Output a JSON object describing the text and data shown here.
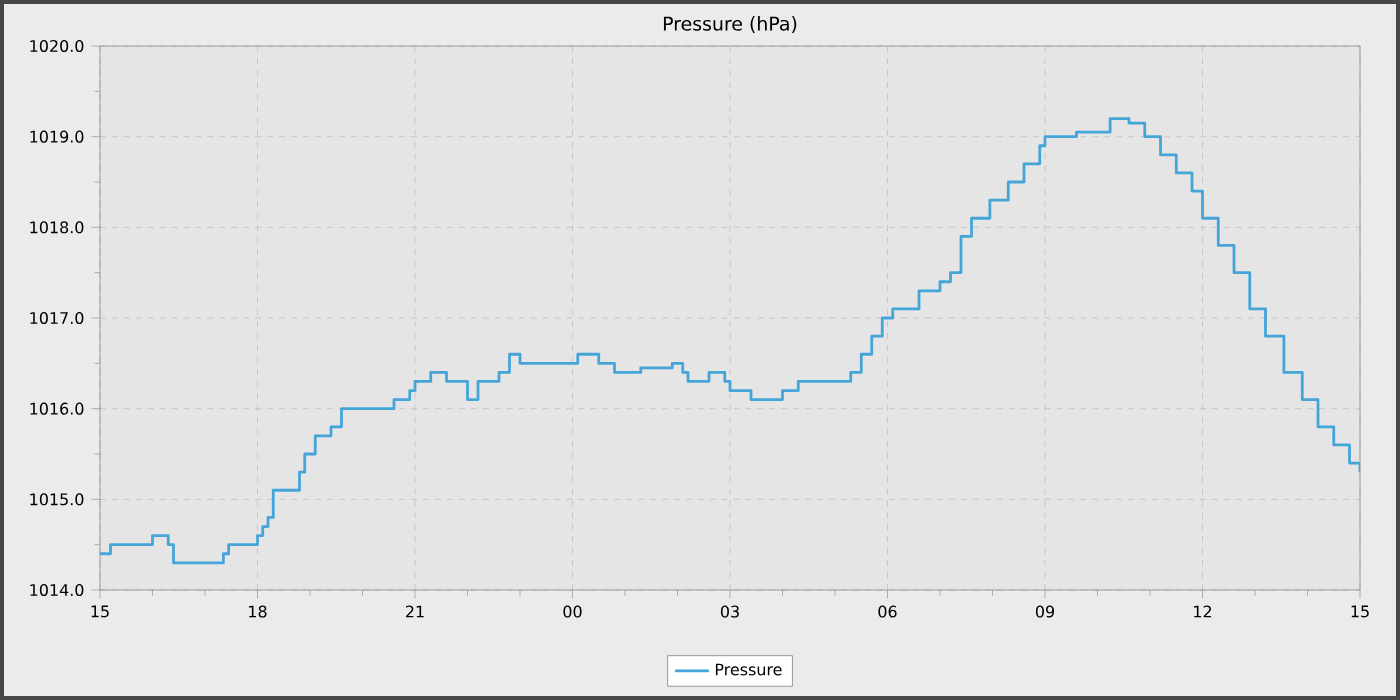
{
  "chart_data": {
    "type": "step",
    "title": "Pressure (hPa)",
    "series": [
      {
        "name": "Pressure",
        "color": "#45a5d8",
        "x": [
          15.0,
          15.2,
          15.8,
          16.0,
          16.3,
          16.4,
          17.35,
          17.45,
          18.0,
          18.1,
          18.2,
          18.3,
          18.43,
          18.8,
          18.9,
          19.1,
          19.4,
          19.6,
          19.8,
          20.6,
          20.9,
          21.0,
          21.3,
          21.6,
          22.0,
          22.2,
          22.6,
          22.8,
          23.0,
          24.1,
          24.5,
          24.8,
          25.3,
          25.9,
          26.1,
          26.2,
          26.6,
          26.9,
          27.0,
          27.4,
          28.0,
          28.3,
          29.3,
          29.5,
          29.7,
          29.9,
          30.1,
          30.6,
          31.0,
          31.2,
          31.4,
          31.6,
          31.95,
          32.3,
          32.6,
          32.9,
          33.0,
          33.6,
          34.24,
          34.6,
          34.9,
          35.2,
          35.5,
          35.8,
          36.0,
          36.3,
          36.6,
          36.9,
          37.2,
          37.55,
          37.9,
          38.2,
          38.5,
          38.8,
          39.0
        ],
        "values": [
          1014.4,
          1014.5,
          1014.5,
          1014.6,
          1014.5,
          1014.3,
          1014.4,
          1014.5,
          1014.6,
          1014.7,
          1014.8,
          1015.1,
          1015.1,
          1015.3,
          1015.5,
          1015.7,
          1015.8,
          1016.0,
          1016.0,
          1016.1,
          1016.2,
          1016.3,
          1016.4,
          1016.3,
          1016.1,
          1016.3,
          1016.4,
          1016.6,
          1016.5,
          1016.6,
          1016.5,
          1016.4,
          1016.45,
          1016.5,
          1016.4,
          1016.3,
          1016.4,
          1016.3,
          1016.2,
          1016.1,
          1016.2,
          1016.3,
          1016.4,
          1016.6,
          1016.8,
          1017.0,
          1017.1,
          1017.3,
          1017.4,
          1017.5,
          1017.9,
          1018.1,
          1018.3,
          1018.5,
          1018.7,
          1018.9,
          1019.0,
          1019.05,
          1019.2,
          1019.15,
          1019.0,
          1018.8,
          1018.6,
          1018.4,
          1018.1,
          1017.8,
          1017.5,
          1017.1,
          1016.8,
          1016.4,
          1016.1,
          1015.8,
          1015.6,
          1015.4,
          1015.3
        ]
      }
    ],
    "xlim": [
      15,
      39
    ],
    "xticks": [
      {
        "value": 15,
        "label": "15"
      },
      {
        "value": 18,
        "label": "18"
      },
      {
        "value": 21,
        "label": "21"
      },
      {
        "value": 24,
        "label": "00"
      },
      {
        "value": 27,
        "label": "03"
      },
      {
        "value": 30,
        "label": "06"
      },
      {
        "value": 33,
        "label": "09"
      },
      {
        "value": 36,
        "label": "12"
      },
      {
        "value": 39,
        "label": "15"
      }
    ],
    "ylim": [
      1014,
      1020
    ],
    "yticks": [
      {
        "value": 1014,
        "label": "1014.0"
      },
      {
        "value": 1015,
        "label": "1015.0"
      },
      {
        "value": 1016,
        "label": "1016.0"
      },
      {
        "value": 1017,
        "label": "1017.0"
      },
      {
        "value": 1018,
        "label": "1018.0"
      },
      {
        "value": 1019,
        "label": "1019.0"
      },
      {
        "value": 1020,
        "label": "1020.0"
      }
    ],
    "grid": true,
    "legend": "bottom",
    "marker": "none",
    "line_style": "solid"
  }
}
